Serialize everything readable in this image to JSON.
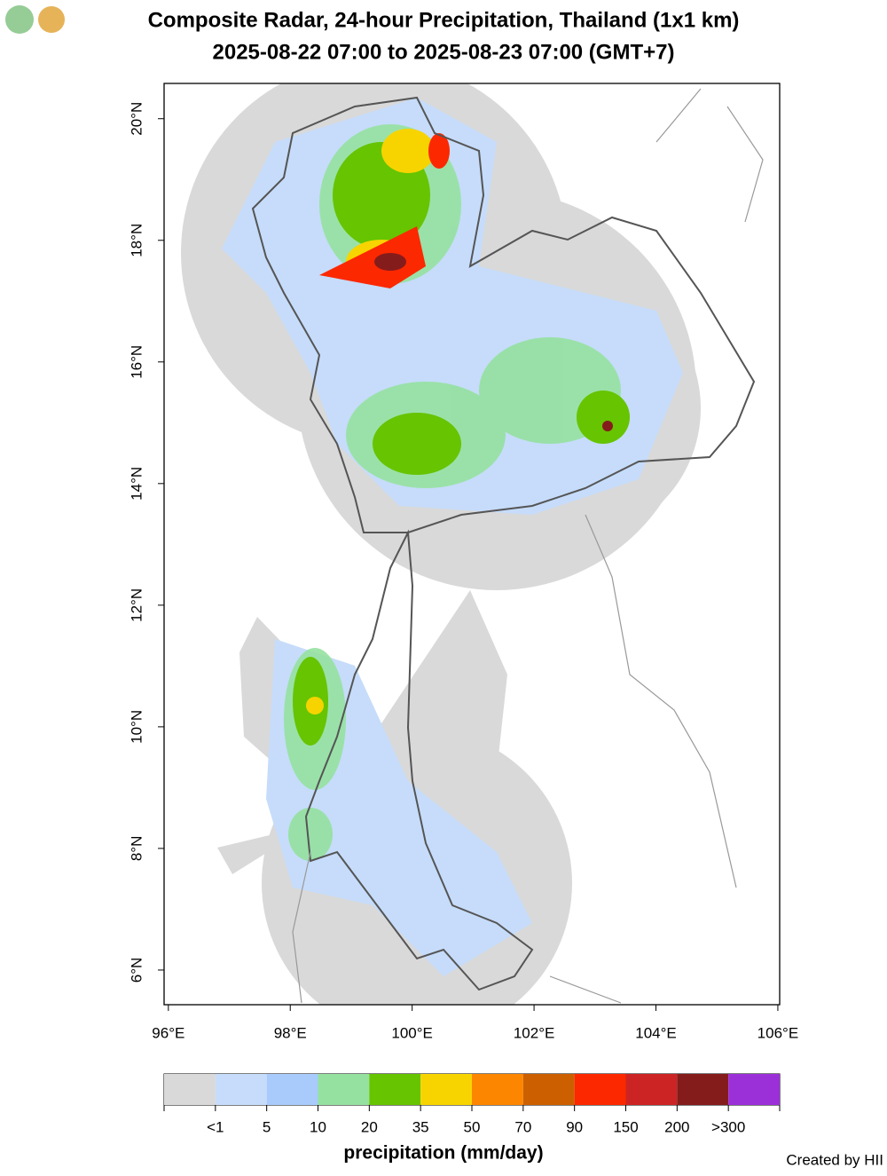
{
  "title": [
    "Composite Radar, 24-hour Precipitation, Thailand (1x1 km)",
    "2025-08-22 07:00 to 2025-08-23 07:00 (GMT+7)"
  ],
  "map": {
    "xlim": [
      95.93,
      106.03
    ],
    "ylim": [
      5.43,
      20.58
    ],
    "xticks": [
      {
        "value": 96,
        "label": "96°E"
      },
      {
        "value": 98,
        "label": "98°E"
      },
      {
        "value": 100,
        "label": "100°E"
      },
      {
        "value": 102,
        "label": "102°E"
      },
      {
        "value": 104,
        "label": "104°E"
      },
      {
        "value": 106,
        "label": "106°E"
      }
    ],
    "yticks": [
      {
        "value": 6,
        "label": "6°N"
      },
      {
        "value": 8,
        "label": "8°N"
      },
      {
        "value": 10,
        "label": "10°N"
      },
      {
        "value": 12,
        "label": "12°N"
      },
      {
        "value": 14,
        "label": "14°N"
      },
      {
        "value": 16,
        "label": "16°N"
      },
      {
        "value": 18,
        "label": "18°N"
      },
      {
        "value": 20,
        "label": "20°N"
      }
    ]
  },
  "colorbar": {
    "title": "precipitation (mm/day)",
    "colors": [
      "#d9d9d9",
      "#c6dcfa",
      "#a8cbfb",
      "#95e1a0",
      "#66c400",
      "#f7d400",
      "#fc8600",
      "#cc6000",
      "#fc2800",
      "#cc2424",
      "#851c1c",
      "#9b30d8"
    ],
    "ticks": [
      {
        "value": 1,
        "label": "<1"
      },
      5,
      10,
      20,
      35,
      50,
      70,
      90,
      150,
      200,
      {
        "value": 300,
        "label": ">300"
      }
    ]
  },
  "credit": "Created by HII"
}
